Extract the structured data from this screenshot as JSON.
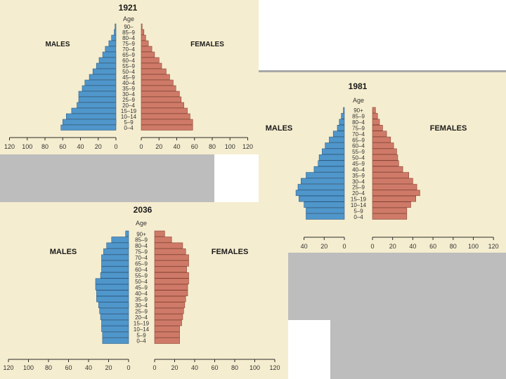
{
  "colors": {
    "background": "#f5edcf",
    "males": "#4f96cb",
    "females": "#cf7a68",
    "axis": "#2a2a2a",
    "frame": "#a8a8a8",
    "gray": "#bdbdbd"
  },
  "chart_data": [
    {
      "type": "bar",
      "title": "1921",
      "age_label": "Age",
      "males_label": "MALES",
      "females_label": "FEMALES",
      "categories": [
        "90–",
        "85–9",
        "80–4",
        "75–9",
        "70–4",
        "65–9",
        "60–4",
        "55–9",
        "50–4",
        "45–9",
        "40–4",
        "35–9",
        "30–4",
        "25–9",
        "20–4",
        "15–19",
        "10–14",
        "5–9",
        "0–4"
      ],
      "series": [
        {
          "name": "MALES",
          "values": [
            1,
            2,
            5,
            8,
            12,
            15,
            19,
            22,
            26,
            30,
            35,
            38,
            42,
            42,
            44,
            50,
            56,
            60,
            62
          ]
        },
        {
          "name": "FEMALES",
          "values": [
            1,
            3,
            5,
            8,
            12,
            15,
            20,
            23,
            28,
            32,
            36,
            39,
            43,
            45,
            48,
            52,
            55,
            58,
            58
          ]
        }
      ],
      "xticks": [
        "120",
        "100",
        "80",
        "60",
        "40",
        "20",
        "0",
        "0",
        "20",
        "40",
        "60",
        "80",
        "100",
        "120"
      ],
      "xlim": [
        0,
        120
      ],
      "grid": false
    },
    {
      "type": "bar",
      "title": "1981",
      "age_label": "Age",
      "males_label": "MALES",
      "females_label": "FEMALES",
      "categories": [
        "90+",
        "85–9",
        "80–4",
        "75–9",
        "70–4",
        "65–9",
        "60–4",
        "55–9",
        "50–4",
        "45–9",
        "40–4",
        "35–9",
        "30–4",
        "25–9",
        "20–4",
        "15–19",
        "10–14",
        "5–9",
        "0–4"
      ],
      "series": [
        {
          "name": "MALES",
          "values": [
            1,
            3,
            5,
            7,
            11,
            15,
            19,
            22,
            25,
            26,
            30,
            38,
            43,
            46,
            48,
            45,
            40,
            38,
            38
          ]
        },
        {
          "name": "FEMALES",
          "values": [
            3,
            5,
            7,
            10,
            14,
            18,
            21,
            24,
            25,
            26,
            30,
            36,
            40,
            44,
            47,
            43,
            38,
            34,
            34
          ]
        }
      ],
      "xticks": [
        "40",
        "20",
        "0",
        "0",
        "20",
        "40",
        "60",
        "80",
        "100",
        "120"
      ],
      "xlim": [
        0,
        120
      ],
      "grid": false
    },
    {
      "type": "bar",
      "title": "2036",
      "age_label": "Age",
      "males_label": "MALES",
      "females_label": "FEMALES",
      "categories": [
        "90+",
        "85–9",
        "80–4",
        "75–9",
        "70–4",
        "65–9",
        "60–4",
        "55–9",
        "50–4",
        "45–9",
        "40–4",
        "35–9",
        "30–4",
        "25–9",
        "20–4",
        "15–19",
        "10–14",
        "5–9",
        "0–4"
      ],
      "series": [
        {
          "name": "MALES",
          "values": [
            3,
            17,
            22,
            25,
            27,
            27,
            27,
            28,
            33,
            33,
            32,
            32,
            30,
            29,
            28,
            27,
            27,
            26,
            26
          ]
        },
        {
          "name": "FEMALES",
          "values": [
            10,
            17,
            28,
            31,
            34,
            34,
            32,
            34,
            34,
            33,
            33,
            31,
            30,
            29,
            28,
            27,
            25,
            25,
            25
          ]
        }
      ],
      "xticks": [
        "120",
        "100",
        "80",
        "60",
        "40",
        "20",
        "0",
        "0",
        "20",
        "40",
        "60",
        "80",
        "100",
        "120"
      ],
      "xlim": [
        0,
        120
      ],
      "grid": false
    }
  ]
}
